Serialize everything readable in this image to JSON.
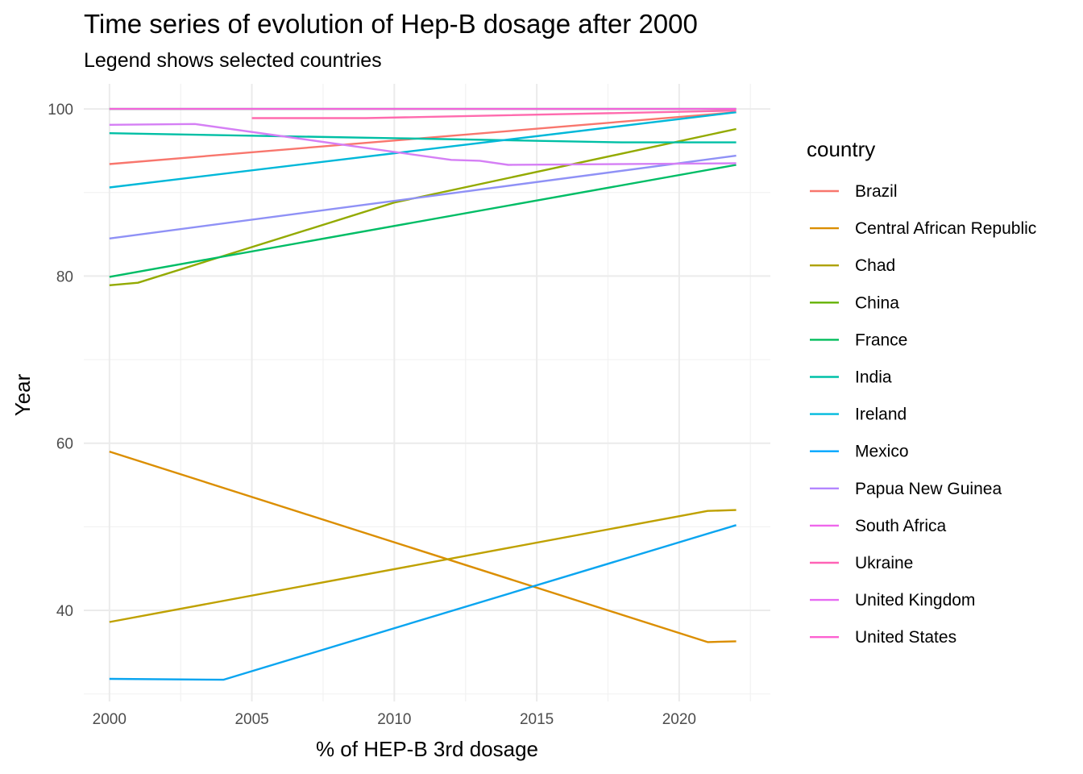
{
  "chart_data": {
    "type": "line",
    "title": "Time series of evolution of Hep-B dosage after 2000",
    "subtitle": "Legend shows selected countries",
    "xlabel": "% of HEP-B 3rd dosage",
    "ylabel": "Year",
    "xlim": [
      1999.1,
      2023.2
    ],
    "ylim": [
      29.1,
      103.0
    ],
    "x_ticks": [
      2000,
      2005,
      2010,
      2015,
      2020
    ],
    "y_ticks": [
      40,
      60,
      80,
      100
    ],
    "grid": true,
    "legend": {
      "title": "country",
      "position": "right"
    },
    "series": [
      {
        "name": "Brazil",
        "color": "#F8766D",
        "points": [
          [
            2000,
            93.4
          ],
          [
            2022,
            99.6
          ]
        ]
      },
      {
        "name": "Central African Republic",
        "color": "#DB8E00",
        "points": [
          [
            2000,
            59.0
          ],
          [
            2021,
            36.2
          ],
          [
            2022,
            36.3
          ]
        ]
      },
      {
        "name": "Chad",
        "color": "#AEA200",
        "points": [
          [
            2000,
            38.6
          ],
          [
            2021,
            51.9
          ],
          [
            2022,
            52.0
          ]
        ]
      },
      {
        "name": "China",
        "color": "#64B200",
        "points": [
          [
            2000,
            78.9
          ],
          [
            2001,
            79.2
          ],
          [
            2010,
            88.8
          ],
          [
            2022,
            97.6
          ]
        ]
      },
      {
        "name": "France",
        "color": "#00BD5C",
        "points": [
          [
            2000,
            100.0
          ],
          [
            2022,
            100.0
          ]
        ]
      },
      {
        "name": "India",
        "color": "#00C1A7",
        "points": [
          [
            2000,
            79.9
          ],
          [
            2022,
            93.3
          ]
        ]
      },
      {
        "name": "Ireland",
        "color": "#00BADE",
        "points": [
          [
            2000,
            97.1
          ],
          [
            2010,
            96.5
          ],
          [
            2018,
            96.0
          ],
          [
            2022,
            96.0
          ]
        ]
      },
      {
        "name": "Mexico",
        "color": "#00A6FF",
        "points": [
          [
            2000,
            90.6
          ],
          [
            2022,
            99.6
          ]
        ]
      },
      {
        "name": "Papua New Guinea",
        "color": "#B385FF",
        "points": [
          [
            2000,
            31.8
          ],
          [
            2004,
            31.7
          ],
          [
            2022,
            50.2
          ]
        ]
      },
      {
        "name": "South Africa",
        "color": "#EF67EB",
        "points": [
          [
            2000,
            84.5
          ],
          [
            2022,
            94.4
          ]
        ]
      },
      {
        "name": "Ukraine",
        "color": "#FF63B6",
        "points": [
          [
            2000,
            98.1
          ],
          [
            2003,
            98.2
          ],
          [
            2012,
            93.9
          ],
          [
            2013,
            93.8
          ],
          [
            2014,
            93.3
          ],
          [
            2022,
            93.5
          ]
        ]
      },
      {
        "name": "United Kingdom",
        "color": "#E76BF3",
        "points": [
          [
            2000,
            100.0
          ],
          [
            2022,
            100.0
          ]
        ]
      },
      {
        "name": "United States",
        "color": "#FD61D1",
        "points": [
          [
            2005,
            98.9
          ],
          [
            2009,
            98.9
          ],
          [
            2022,
            99.8
          ]
        ]
      }
    ]
  },
  "legend_colors": {
    "Brazil": "#F8766D",
    "Central African Republic": "#DB8E00",
    "Chad": "#AEA200",
    "China": "#64B200",
    "France": "#00BD5C",
    "India": "#00C1A7",
    "Ireland": "#00BADE",
    "Mexico": "#00A6FF",
    "Papua New Guinea": "#B385FF",
    "South Africa": "#EF67EB",
    "Ukraine": "#FF63B6",
    "United Kingdom": "#E76BF3",
    "United States": "#FD61D1"
  },
  "line_colors": {
    "Brazil": "#F8766D",
    "Central African Republic": "#DB8E00",
    "Chad": "#BFA100",
    "China": "#93AA00",
    "France": "#00BA38",
    "India": "#00BD66",
    "Ireland": "#00BFA5",
    "Mexico": "#00B8D9",
    "Papua New Guinea": "#0AA5F0",
    "South Africa": "#8F91F6",
    "Ukraine": "#D57FF5",
    "United Kingdom": "#F265DB",
    "United States": "#FF6BAE"
  }
}
